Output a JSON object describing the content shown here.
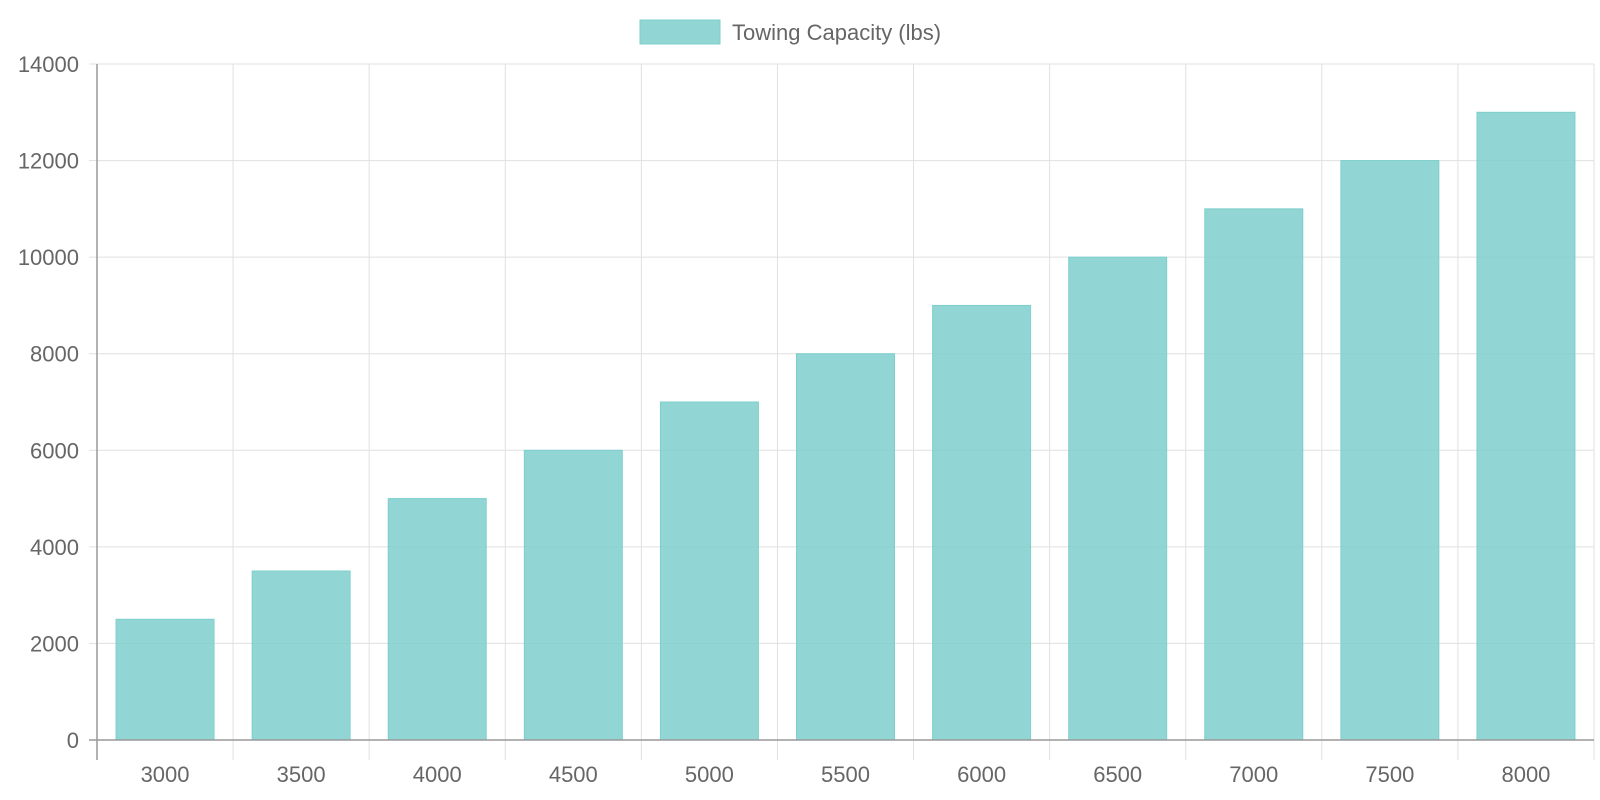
{
  "chart_data": {
    "type": "bar",
    "title": "",
    "xlabel": "",
    "ylabel": "",
    "categories": [
      "3000",
      "3500",
      "4000",
      "4500",
      "5000",
      "5500",
      "6000",
      "6500",
      "7000",
      "7500",
      "8000"
    ],
    "series": [
      {
        "name": "Towing Capacity (lbs)",
        "values": [
          2500,
          3500,
          5000,
          6000,
          7000,
          8000,
          9000,
          10000,
          11000,
          12000,
          13000
        ],
        "color": "#7fd1ce"
      }
    ],
    "ylim": [
      0,
      14000
    ],
    "yticks": [
      "0",
      "2000",
      "4000",
      "6000",
      "8000",
      "10000",
      "12000",
      "14000"
    ],
    "grid": true,
    "legend_position": "top"
  },
  "colors": {
    "bar_fill": "rgba(126, 207, 204, 0.85)",
    "bar_stroke": "#7ecfcc",
    "grid": "#e0e0e0",
    "axis": "#999999",
    "text": "#666666"
  }
}
